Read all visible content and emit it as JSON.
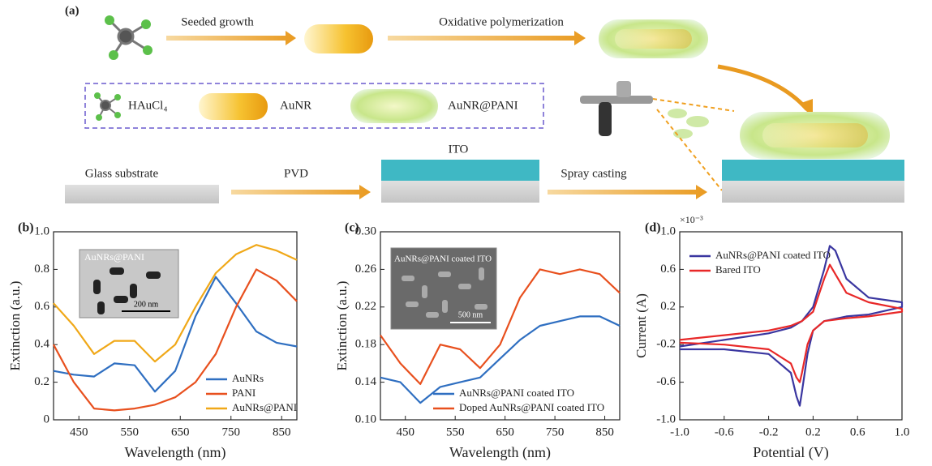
{
  "schematic": {
    "panel_label": "(a)",
    "step1": "Seeded growth",
    "step2": "Oxidative polymerization",
    "legend_precursor": "HAuCl₄",
    "legend_rod": "AuNR",
    "legend_coated_rod": "AuNR@PANI",
    "ito_label": "ITO",
    "glass_label": "Glass substrate",
    "step3": "PVD",
    "step4": "Spray casting"
  },
  "chart_data": [
    {
      "type": "line",
      "panel_label": "(b)",
      "xlabel": "Wavelength (nm)",
      "ylabel": "Extinction (a.u.)",
      "inset_label": "AuNRs@PANI",
      "inset_scale": "200 nm",
      "x": [
        400,
        440,
        480,
        520,
        560,
        600,
        640,
        680,
        720,
        760,
        800,
        840,
        880
      ],
      "series": [
        {
          "name": "AuNRs",
          "color": "#2f6fc1",
          "values": [
            0.26,
            0.24,
            0.23,
            0.3,
            0.29,
            0.15,
            0.26,
            0.55,
            0.76,
            0.62,
            0.47,
            0.41,
            0.39
          ]
        },
        {
          "name": "PANI",
          "color": "#e8501e",
          "values": [
            0.4,
            0.2,
            0.06,
            0.05,
            0.06,
            0.08,
            0.12,
            0.2,
            0.35,
            0.6,
            0.8,
            0.74,
            0.63
          ]
        },
        {
          "name": "AuNRs@PANI",
          "color": "#f0a818",
          "values": [
            0.62,
            0.5,
            0.35,
            0.42,
            0.42,
            0.31,
            0.4,
            0.6,
            0.78,
            0.88,
            0.93,
            0.9,
            0.85
          ]
        }
      ],
      "xlim": [
        400,
        880
      ],
      "xticks": [
        450,
        550,
        650,
        750,
        850
      ],
      "ylim": [
        0,
        1
      ],
      "yticks": [
        0,
        0.2,
        0.4,
        0.6,
        0.8,
        {
          "value": 1,
          "label": "1.0"
        }
      ],
      "legend": "lower right"
    },
    {
      "type": "line",
      "panel_label": "(c)",
      "xlabel": "Wavelength (nm)",
      "ylabel": "Extinction (a.u.)",
      "inset_label": "AuNRs@PANI coated ITO",
      "inset_scale": "500 nm",
      "x": [
        400,
        440,
        480,
        520,
        560,
        600,
        640,
        680,
        720,
        760,
        800,
        840,
        880
      ],
      "series": [
        {
          "name": "AuNRs@PANI coated ITO",
          "color": "#2f6fc1",
          "values": [
            0.145,
            0.14,
            0.118,
            0.135,
            0.14,
            0.145,
            0.165,
            0.185,
            0.2,
            0.205,
            0.21,
            0.21,
            0.2
          ]
        },
        {
          "name": "Doped AuNRs@PANI coated ITO",
          "color": "#e8501e",
          "values": [
            0.19,
            0.16,
            0.138,
            0.18,
            0.175,
            0.155,
            0.18,
            0.23,
            0.26,
            0.255,
            0.26,
            0.255,
            0.235
          ]
        }
      ],
      "xlim": [
        400,
        880
      ],
      "xticks": [
        450,
        550,
        650,
        750,
        850
      ],
      "ylim": [
        0.1,
        0.3
      ],
      "yticks": [
        {
          "value": 0.1,
          "label": "0.10"
        },
        0.14,
        0.18,
        0.22,
        0.26,
        {
          "value": 0.3,
          "label": "0.30"
        }
      ],
      "legend": "lower right"
    },
    {
      "type": "line",
      "panel_label": "(d)",
      "xlabel": "Potential (V)",
      "ylabel": "Current (A)",
      "y_multiplier": "×10⁻³",
      "series": [
        {
          "name": "AuNRs@PANI coated ITO",
          "color": "#3a36a0",
          "x": [
            -1.0,
            -0.6,
            -0.2,
            0.0,
            0.1,
            0.2,
            0.3,
            0.35,
            0.4,
            0.5,
            0.7,
            1.0,
            1.0,
            0.7,
            0.5,
            0.3,
            0.2,
            0.15,
            0.1,
            0.08,
            0.05,
            0.0,
            -0.2,
            -0.6,
            -1.0
          ],
          "values": [
            -0.22,
            -0.15,
            -0.08,
            -0.02,
            0.05,
            0.2,
            0.6,
            0.85,
            0.8,
            0.5,
            0.3,
            0.25,
            0.2,
            0.12,
            0.1,
            0.05,
            -0.05,
            -0.3,
            -0.7,
            -0.85,
            -0.75,
            -0.5,
            -0.3,
            -0.25,
            -0.25
          ]
        },
        {
          "name": "Bared ITO",
          "color": "#e82828",
          "x": [
            -1.0,
            -0.6,
            -0.2,
            0.0,
            0.1,
            0.2,
            0.3,
            0.35,
            0.4,
            0.5,
            0.7,
            1.0,
            1.0,
            0.7,
            0.5,
            0.3,
            0.2,
            0.15,
            0.1,
            0.08,
            0.05,
            0.0,
            -0.2,
            -0.6,
            -1.0
          ],
          "values": [
            -0.15,
            -0.1,
            -0.05,
            0,
            0.05,
            0.15,
            0.5,
            0.65,
            0.55,
            0.35,
            0.25,
            0.18,
            0.15,
            0.1,
            0.08,
            0.05,
            -0.05,
            -0.2,
            -0.5,
            -0.6,
            -0.55,
            -0.4,
            -0.25,
            -0.2,
            -0.18
          ]
        }
      ],
      "xlim": [
        -1,
        1
      ],
      "xticks": [
        {
          "value": -1,
          "label": "-1.0"
        },
        -0.6,
        -0.2,
        0.2,
        0.6,
        {
          "value": 1,
          "label": "1.0"
        }
      ],
      "ylim": [
        -1,
        1
      ],
      "yticks": [
        {
          "value": -1,
          "label": "-1.0"
        },
        -0.6,
        -0.2,
        0.2,
        0.6,
        {
          "value": 1,
          "label": "1.0"
        }
      ],
      "legend": "upper left"
    }
  ]
}
